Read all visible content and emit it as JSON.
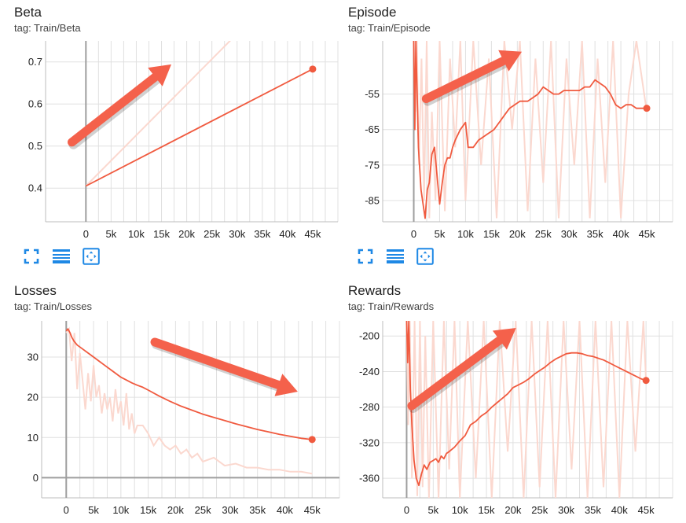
{
  "colors": {
    "series": "#f05a3f",
    "raw": "#fbd8cf",
    "grid": "#e0e0e0",
    "axis": "#9e9e9e",
    "arrow": "#f4614b",
    "icon": "#1e88e5"
  },
  "toolbar": {
    "icons": [
      "fullscreen-icon",
      "toggle-y-log-icon",
      "fit-domain-icon"
    ]
  },
  "charts": {
    "beta": {
      "title": "Beta",
      "tag": "tag: Train/Beta"
    },
    "episode": {
      "title": "Episode",
      "tag": "tag: Train/Episode"
    },
    "losses": {
      "title": "Losses",
      "tag": "tag: Train/Losses"
    },
    "rewards": {
      "title": "Rewards",
      "tag": "tag: Train/Rewards"
    }
  },
  "chart_data": [
    {
      "id": "beta",
      "type": "line",
      "title": "Beta",
      "subtitle": "tag: Train/Beta",
      "xlim": [
        -8000,
        50000
      ],
      "ylim": [
        0.32,
        0.75
      ],
      "xticks": [
        0,
        5000,
        10000,
        15000,
        20000,
        25000,
        30000,
        35000,
        40000,
        45000
      ],
      "xtick_labels": [
        "0",
        "5k",
        "10k",
        "15k",
        "20k",
        "25k",
        "30k",
        "35k",
        "40k",
        "45k"
      ],
      "yticks": [
        0.4,
        0.5,
        0.6,
        0.7
      ],
      "ytick_labels": [
        "0.4",
        "0.5",
        "0.6",
        "0.7"
      ],
      "grid": true,
      "raw": [
        [
          0,
          0.405
        ],
        [
          29000,
          0.755
        ]
      ],
      "smoothed": [
        [
          0,
          0.405
        ],
        [
          45000,
          0.683
        ]
      ],
      "trend_arrow": "up"
    },
    {
      "id": "episode",
      "type": "line",
      "title": "Episode",
      "subtitle": "tag: Train/Episode",
      "xlim": [
        -6000,
        50000
      ],
      "ylim": [
        -91,
        -40
      ],
      "xticks": [
        0,
        5000,
        10000,
        15000,
        20000,
        25000,
        30000,
        35000,
        40000,
        45000
      ],
      "xtick_labels": [
        "0",
        "5k",
        "10k",
        "15k",
        "20k",
        "25k",
        "30k",
        "35k",
        "40k",
        "45k"
      ],
      "yticks": [
        -85,
        -75,
        -65,
        -55
      ],
      "ytick_labels": [
        "-85",
        "-75",
        "-65",
        "-55"
      ],
      "grid": true,
      "raw": [
        [
          0,
          -40
        ],
        [
          300,
          -60
        ],
        [
          600,
          -40
        ],
        [
          1000,
          -75
        ],
        [
          1500,
          -45
        ],
        [
          2000,
          -85
        ],
        [
          2500,
          -40
        ],
        [
          3000,
          -90
        ],
        [
          3500,
          -60
        ],
        [
          4200,
          -85
        ],
        [
          5000,
          -40
        ],
        [
          6000,
          -88
        ],
        [
          7000,
          -45
        ],
        [
          8000,
          -70
        ],
        [
          9000,
          -40
        ],
        [
          10000,
          -85
        ],
        [
          11500,
          -40
        ],
        [
          13000,
          -75
        ],
        [
          14500,
          -45
        ],
        [
          16000,
          -90
        ],
        [
          17500,
          -40
        ],
        [
          19000,
          -65
        ],
        [
          20500,
          -40
        ],
        [
          22000,
          -88
        ],
        [
          23500,
          -45
        ],
        [
          25000,
          -80
        ],
        [
          26500,
          -40
        ],
        [
          28000,
          -90
        ],
        [
          29500,
          -45
        ],
        [
          31000,
          -75
        ],
        [
          32500,
          -40
        ],
        [
          34000,
          -90
        ],
        [
          35500,
          -45
        ],
        [
          37000,
          -80
        ],
        [
          38500,
          -40
        ],
        [
          40000,
          -90
        ],
        [
          41500,
          -55
        ],
        [
          43000,
          -40
        ],
        [
          45000,
          -60
        ]
      ],
      "smoothed": [
        [
          0,
          -40
        ],
        [
          200,
          -65
        ],
        [
          400,
          -40
        ],
        [
          900,
          -70
        ],
        [
          1400,
          -82
        ],
        [
          1800,
          -86
        ],
        [
          2200,
          -90
        ],
        [
          2600,
          -82
        ],
        [
          3000,
          -80
        ],
        [
          3500,
          -72
        ],
        [
          4000,
          -70
        ],
        [
          4500,
          -78
        ],
        [
          5000,
          -86
        ],
        [
          5500,
          -80
        ],
        [
          6000,
          -75
        ],
        [
          6500,
          -73
        ],
        [
          7000,
          -73
        ],
        [
          7500,
          -70
        ],
        [
          8000,
          -68
        ],
        [
          9000,
          -65
        ],
        [
          10000,
          -63
        ],
        [
          10500,
          -70
        ],
        [
          11500,
          -70
        ],
        [
          12500,
          -68
        ],
        [
          13500,
          -67
        ],
        [
          14500,
          -66
        ],
        [
          15500,
          -65
        ],
        [
          16500,
          -63
        ],
        [
          17500,
          -61
        ],
        [
          18500,
          -59
        ],
        [
          19500,
          -58
        ],
        [
          20500,
          -57
        ],
        [
          22000,
          -57
        ],
        [
          23000,
          -56
        ],
        [
          24000,
          -55
        ],
        [
          25000,
          -53
        ],
        [
          26000,
          -54
        ],
        [
          27000,
          -55
        ],
        [
          28000,
          -55
        ],
        [
          29000,
          -54
        ],
        [
          30000,
          -54
        ],
        [
          31000,
          -54
        ],
        [
          32000,
          -54
        ],
        [
          33000,
          -53
        ],
        [
          34000,
          -53
        ],
        [
          35000,
          -51
        ],
        [
          36000,
          -52
        ],
        [
          37000,
          -53
        ],
        [
          38000,
          -55
        ],
        [
          39000,
          -58
        ],
        [
          40000,
          -59
        ],
        [
          41000,
          -58
        ],
        [
          42000,
          -58
        ],
        [
          43000,
          -59
        ],
        [
          44000,
          -59
        ],
        [
          45000,
          -59
        ]
      ],
      "trend_arrow": "up"
    },
    {
      "id": "losses",
      "type": "line",
      "title": "Losses",
      "subtitle": "tag: Train/Losses",
      "xlim": [
        -4500,
        50000
      ],
      "ylim": [
        -5,
        39
      ],
      "xticks": [
        0,
        5000,
        10000,
        15000,
        20000,
        25000,
        30000,
        35000,
        40000,
        45000
      ],
      "xtick_labels": [
        "0",
        "5k",
        "10k",
        "15k",
        "20k",
        "25k",
        "30k",
        "35k",
        "40k",
        "45k"
      ],
      "yticks": [
        0,
        10,
        20,
        30
      ],
      "ytick_labels": [
        "0",
        "10",
        "20",
        "30"
      ],
      "grid": true,
      "raw": [
        [
          0,
          36
        ],
        [
          500,
          37
        ],
        [
          1000,
          29
        ],
        [
          1500,
          36
        ],
        [
          2000,
          22
        ],
        [
          2500,
          31
        ],
        [
          3000,
          24
        ],
        [
          3500,
          17
        ],
        [
          4000,
          26
        ],
        [
          4500,
          19
        ],
        [
          5000,
          28
        ],
        [
          5500,
          20
        ],
        [
          6000,
          23
        ],
        [
          6500,
          16
        ],
        [
          7000,
          21
        ],
        [
          7500,
          17
        ],
        [
          8000,
          20
        ],
        [
          8500,
          14
        ],
        [
          9000,
          22
        ],
        [
          9500,
          16
        ],
        [
          10000,
          19
        ],
        [
          10500,
          13
        ],
        [
          11000,
          21
        ],
        [
          11500,
          12
        ],
        [
          12000,
          16
        ],
        [
          12500,
          11
        ],
        [
          13000,
          13
        ],
        [
          14000,
          13
        ],
        [
          15000,
          11
        ],
        [
          16000,
          8
        ],
        [
          17000,
          10
        ],
        [
          18000,
          8
        ],
        [
          19000,
          7
        ],
        [
          20000,
          8
        ],
        [
          21000,
          6
        ],
        [
          22000,
          7
        ],
        [
          23000,
          5
        ],
        [
          24000,
          6
        ],
        [
          25000,
          4
        ],
        [
          27000,
          5
        ],
        [
          29000,
          3
        ],
        [
          31000,
          3.5
        ],
        [
          33000,
          2.5
        ],
        [
          35000,
          2.5
        ],
        [
          37000,
          2
        ],
        [
          39000,
          2
        ],
        [
          41000,
          1.5
        ],
        [
          43000,
          1.5
        ],
        [
          45000,
          1
        ]
      ],
      "smoothed": [
        [
          0,
          36.5
        ],
        [
          300,
          37
        ],
        [
          700,
          36
        ],
        [
          1000,
          35
        ],
        [
          1400,
          34
        ],
        [
          2000,
          33
        ],
        [
          3000,
          32
        ],
        [
          4000,
          31
        ],
        [
          5000,
          30
        ],
        [
          6000,
          29
        ],
        [
          7000,
          28
        ],
        [
          8000,
          27
        ],
        [
          9000,
          26
        ],
        [
          10000,
          25
        ],
        [
          11000,
          24.3
        ],
        [
          12000,
          23.6
        ],
        [
          13000,
          23
        ],
        [
          14000,
          22.5
        ],
        [
          15000,
          21.8
        ],
        [
          17000,
          20.3
        ],
        [
          19000,
          19
        ],
        [
          21000,
          17.8
        ],
        [
          23000,
          16.8
        ],
        [
          25000,
          15.8
        ],
        [
          27000,
          15
        ],
        [
          29000,
          14.2
        ],
        [
          31000,
          13.4
        ],
        [
          33000,
          12.7
        ],
        [
          35000,
          12
        ],
        [
          37000,
          11.4
        ],
        [
          39000,
          10.8
        ],
        [
          41000,
          10.3
        ],
        [
          43000,
          9.8
        ],
        [
          45000,
          9.5
        ]
      ],
      "trend_arrow": "down"
    },
    {
      "id": "rewards",
      "type": "line",
      "title": "Rewards",
      "subtitle": "tag: Train/Rewards",
      "xlim": [
        -4500,
        50000
      ],
      "ylim": [
        -382,
        -183
      ],
      "xticks": [
        0,
        5000,
        10000,
        15000,
        20000,
        25000,
        30000,
        35000,
        40000,
        45000
      ],
      "xtick_labels": [
        "0",
        "5k",
        "10k",
        "15k",
        "20k",
        "25k",
        "30k",
        "35k",
        "40k",
        "45k"
      ],
      "yticks": [
        -360,
        -320,
        -280,
        -240,
        -200
      ],
      "ytick_labels": [
        "-360",
        "-320",
        "-280",
        "-240",
        "-200"
      ],
      "grid": true,
      "raw": [
        [
          0,
          -183
        ],
        [
          300,
          -300
        ],
        [
          600,
          -183
        ],
        [
          1000,
          -360
        ],
        [
          1500,
          -183
        ],
        [
          2000,
          -380
        ],
        [
          2500,
          -183
        ],
        [
          3000,
          -370
        ],
        [
          3500,
          -200
        ],
        [
          4200,
          -382
        ],
        [
          5000,
          -183
        ],
        [
          6000,
          -382
        ],
        [
          7000,
          -183
        ],
        [
          8000,
          -350
        ],
        [
          9000,
          -183
        ],
        [
          10000,
          -382
        ],
        [
          11500,
          -183
        ],
        [
          13000,
          -360
        ],
        [
          14500,
          -183
        ],
        [
          16000,
          -382
        ],
        [
          17500,
          -183
        ],
        [
          19000,
          -330
        ],
        [
          20500,
          -183
        ],
        [
          22000,
          -382
        ],
        [
          23500,
          -183
        ],
        [
          25000,
          -370
        ],
        [
          26500,
          -183
        ],
        [
          28000,
          -382
        ],
        [
          29500,
          -183
        ],
        [
          31000,
          -350
        ],
        [
          32500,
          -183
        ],
        [
          34000,
          -382
        ],
        [
          35500,
          -183
        ],
        [
          37000,
          -370
        ],
        [
          38500,
          -183
        ],
        [
          40000,
          -382
        ],
        [
          41500,
          -183
        ],
        [
          43000,
          -330
        ],
        [
          44500,
          -183
        ],
        [
          45000,
          -250
        ]
      ],
      "smoothed": [
        [
          0,
          -183
        ],
        [
          200,
          -230
        ],
        [
          400,
          -183
        ],
        [
          700,
          -260
        ],
        [
          1000,
          -300
        ],
        [
          1400,
          -340
        ],
        [
          1800,
          -360
        ],
        [
          2300,
          -368
        ],
        [
          2800,
          -355
        ],
        [
          3300,
          -345
        ],
        [
          3800,
          -350
        ],
        [
          4400,
          -342
        ],
        [
          5000,
          -340
        ],
        [
          5500,
          -338
        ],
        [
          6000,
          -342
        ],
        [
          6500,
          -335
        ],
        [
          7000,
          -338
        ],
        [
          7500,
          -332
        ],
        [
          8000,
          -330
        ],
        [
          9000,
          -325
        ],
        [
          10000,
          -318
        ],
        [
          11000,
          -312
        ],
        [
          12000,
          -300
        ],
        [
          13000,
          -296
        ],
        [
          14000,
          -290
        ],
        [
          15000,
          -286
        ],
        [
          16000,
          -280
        ],
        [
          17000,
          -275
        ],
        [
          18000,
          -270
        ],
        [
          19000,
          -265
        ],
        [
          20000,
          -258
        ],
        [
          21000,
          -255
        ],
        [
          22000,
          -252
        ],
        [
          23000,
          -248
        ],
        [
          24000,
          -243
        ],
        [
          25000,
          -239
        ],
        [
          26000,
          -235
        ],
        [
          27000,
          -230
        ],
        [
          28000,
          -226
        ],
        [
          29000,
          -223
        ],
        [
          30000,
          -220
        ],
        [
          31000,
          -219
        ],
        [
          32000,
          -219
        ],
        [
          33000,
          -220
        ],
        [
          34000,
          -222
        ],
        [
          35000,
          -223
        ],
        [
          36000,
          -225
        ],
        [
          37000,
          -227
        ],
        [
          38000,
          -230
        ],
        [
          39000,
          -233
        ],
        [
          40000,
          -236
        ],
        [
          41000,
          -239
        ],
        [
          42000,
          -242
        ],
        [
          43000,
          -245
        ],
        [
          44000,
          -248
        ],
        [
          45000,
          -250
        ]
      ],
      "trend_arrow": "up"
    }
  ]
}
